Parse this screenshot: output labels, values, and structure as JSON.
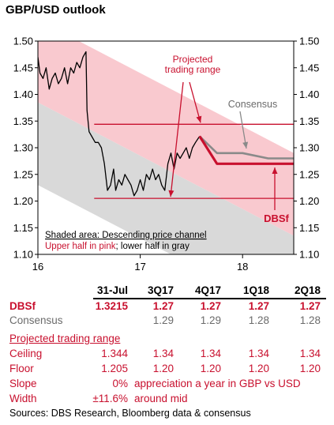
{
  "chart_data": {
    "type": "line",
    "title": "GBP/USD outlook",
    "ylim": [
      1.1,
      1.5
    ],
    "y_ticks": [
      "1.50",
      "1.45",
      "1.40",
      "1.35",
      "1.30",
      "1.25",
      "1.20",
      "1.15",
      "1.10"
    ],
    "x_ticks": [
      "16",
      "17",
      "18"
    ],
    "x_tick_values": [
      2016.0,
      2017.0,
      2018.0
    ],
    "xlim": [
      2016.0,
      2018.5
    ],
    "series": [
      {
        "name": "GBP/USD",
        "color": "#000000",
        "x": [
          2016.0,
          2016.02,
          2016.05,
          2016.08,
          2016.11,
          2016.14,
          2016.17,
          2016.2,
          2016.23,
          2016.26,
          2016.29,
          2016.32,
          2016.35,
          2016.38,
          2016.41,
          2016.44,
          2016.47,
          2016.48,
          2016.5,
          2016.53,
          2016.56,
          2016.59,
          2016.62,
          2016.65,
          2016.68,
          2016.71,
          2016.74,
          2016.76,
          2016.79,
          2016.82,
          2016.85,
          2016.88,
          2016.91,
          2016.94,
          2016.97,
          2017.0,
          2017.03,
          2017.06,
          2017.09,
          2017.12,
          2017.15,
          2017.18,
          2017.21,
          2017.24,
          2017.27,
          2017.3,
          2017.33,
          2017.36,
          2017.39,
          2017.42,
          2017.45,
          2017.48,
          2017.51,
          2017.54,
          2017.58
        ],
        "y": [
          1.47,
          1.44,
          1.43,
          1.45,
          1.41,
          1.43,
          1.44,
          1.42,
          1.43,
          1.45,
          1.42,
          1.45,
          1.44,
          1.46,
          1.45,
          1.47,
          1.48,
          1.37,
          1.33,
          1.32,
          1.31,
          1.31,
          1.3,
          1.27,
          1.22,
          1.23,
          1.26,
          1.22,
          1.24,
          1.23,
          1.25,
          1.24,
          1.23,
          1.21,
          1.22,
          1.24,
          1.22,
          1.25,
          1.24,
          1.26,
          1.24,
          1.25,
          1.23,
          1.22,
          1.27,
          1.29,
          1.26,
          1.29,
          1.28,
          1.29,
          1.3,
          1.28,
          1.3,
          1.31,
          1.3215
        ]
      },
      {
        "name": "Consensus",
        "color": "#8a8a8a",
        "x": [
          2017.58,
          2017.75,
          2018.0,
          2018.25,
          2018.5
        ],
        "y": [
          1.3215,
          1.29,
          1.29,
          1.28,
          1.28
        ]
      },
      {
        "name": "DBSf",
        "color": "#c8102e",
        "x": [
          2017.58,
          2017.75,
          2018.0,
          2018.25,
          2018.5
        ],
        "y": [
          1.3215,
          1.27,
          1.27,
          1.27,
          1.27
        ]
      }
    ],
    "channel": {
      "upper_start": 1.54,
      "mid_start": 1.385,
      "lower_start": 1.23,
      "slope_per_year": -0.1,
      "upper_color": "#f9c9cf",
      "lower_color": "#d9d9d9"
    },
    "range_lines": {
      "ceiling": 1.344,
      "floor": 1.205,
      "start_x": 2016.55,
      "color": "#c8102e"
    },
    "annotations": {
      "projected": "Projected\ntrading range",
      "consensus": "Consensus",
      "dbsf": "DBSf",
      "legend_line1": "Shaded area: Descending price channel",
      "legend_line2_upper": "Upper half in pink",
      "legend_line2_sep": "; ",
      "legend_line2_lower": "lower half in gray"
    }
  },
  "table": {
    "headers": [
      "",
      "31-Jul",
      "3Q17",
      "4Q17",
      "1Q18",
      "2Q18"
    ],
    "dbsf": {
      "label": "DBSf",
      "values": [
        "1.3215",
        "1.27",
        "1.27",
        "1.27",
        "1.27"
      ]
    },
    "consensus": {
      "label": "Consensus",
      "values": [
        "",
        "1.29",
        "1.29",
        "1.28",
        "1.28"
      ]
    },
    "range_heading": "Projected trading range",
    "ceiling": {
      "label": "Ceiling",
      "values": [
        "1.344",
        "1.34",
        "1.34",
        "1.34",
        "1.34"
      ]
    },
    "floor": {
      "label": "Floor",
      "values": [
        "1.205",
        "1.20",
        "1.20",
        "1.20",
        "1.20"
      ]
    },
    "slope": {
      "label": "Slope",
      "value": "0%",
      "text": "appreciation a year in GBP vs USD"
    },
    "width": {
      "label": "Width",
      "value": "±11.6%",
      "text": "around mid"
    },
    "sources": "Sources: DBS Research, Bloomberg data & consensus"
  }
}
